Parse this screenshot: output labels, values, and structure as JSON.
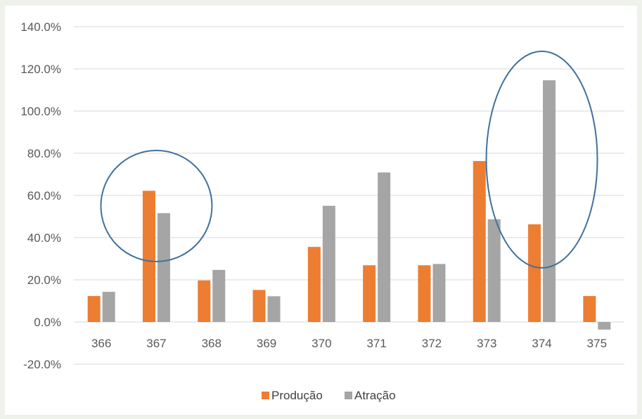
{
  "chart_data": {
    "type": "bar",
    "categories": [
      "366",
      "367",
      "368",
      "369",
      "370",
      "371",
      "372",
      "373",
      "374",
      "375"
    ],
    "series": [
      {
        "name": "Produção",
        "color": "#ED7D31",
        "values": [
          12.3,
          62.2,
          19.7,
          15.2,
          35.6,
          26.9,
          26.9,
          76.3,
          46.3,
          12.3
        ]
      },
      {
        "name": "Atração",
        "color": "#A5A5A5",
        "values": [
          14.3,
          51.6,
          24.7,
          12.2,
          55.1,
          70.9,
          27.5,
          48.7,
          114.6,
          -3.6
        ]
      }
    ],
    "ylim": [
      -20,
      140
    ],
    "yticks": [
      "-20.0%",
      "0.0%",
      "20.0%",
      "40.0%",
      "60.0%",
      "80.0%",
      "100.0%",
      "120.0%",
      "140.0%"
    ],
    "ytick_values": [
      -20,
      0,
      20,
      40,
      60,
      80,
      100,
      120,
      140
    ],
    "grid": true,
    "legend": "bottom",
    "annotations": [
      {
        "type": "ellipse",
        "around_category": "367",
        "color": "#41719C"
      },
      {
        "type": "ellipse",
        "around_category": "374",
        "color": "#41719C"
      }
    ]
  }
}
